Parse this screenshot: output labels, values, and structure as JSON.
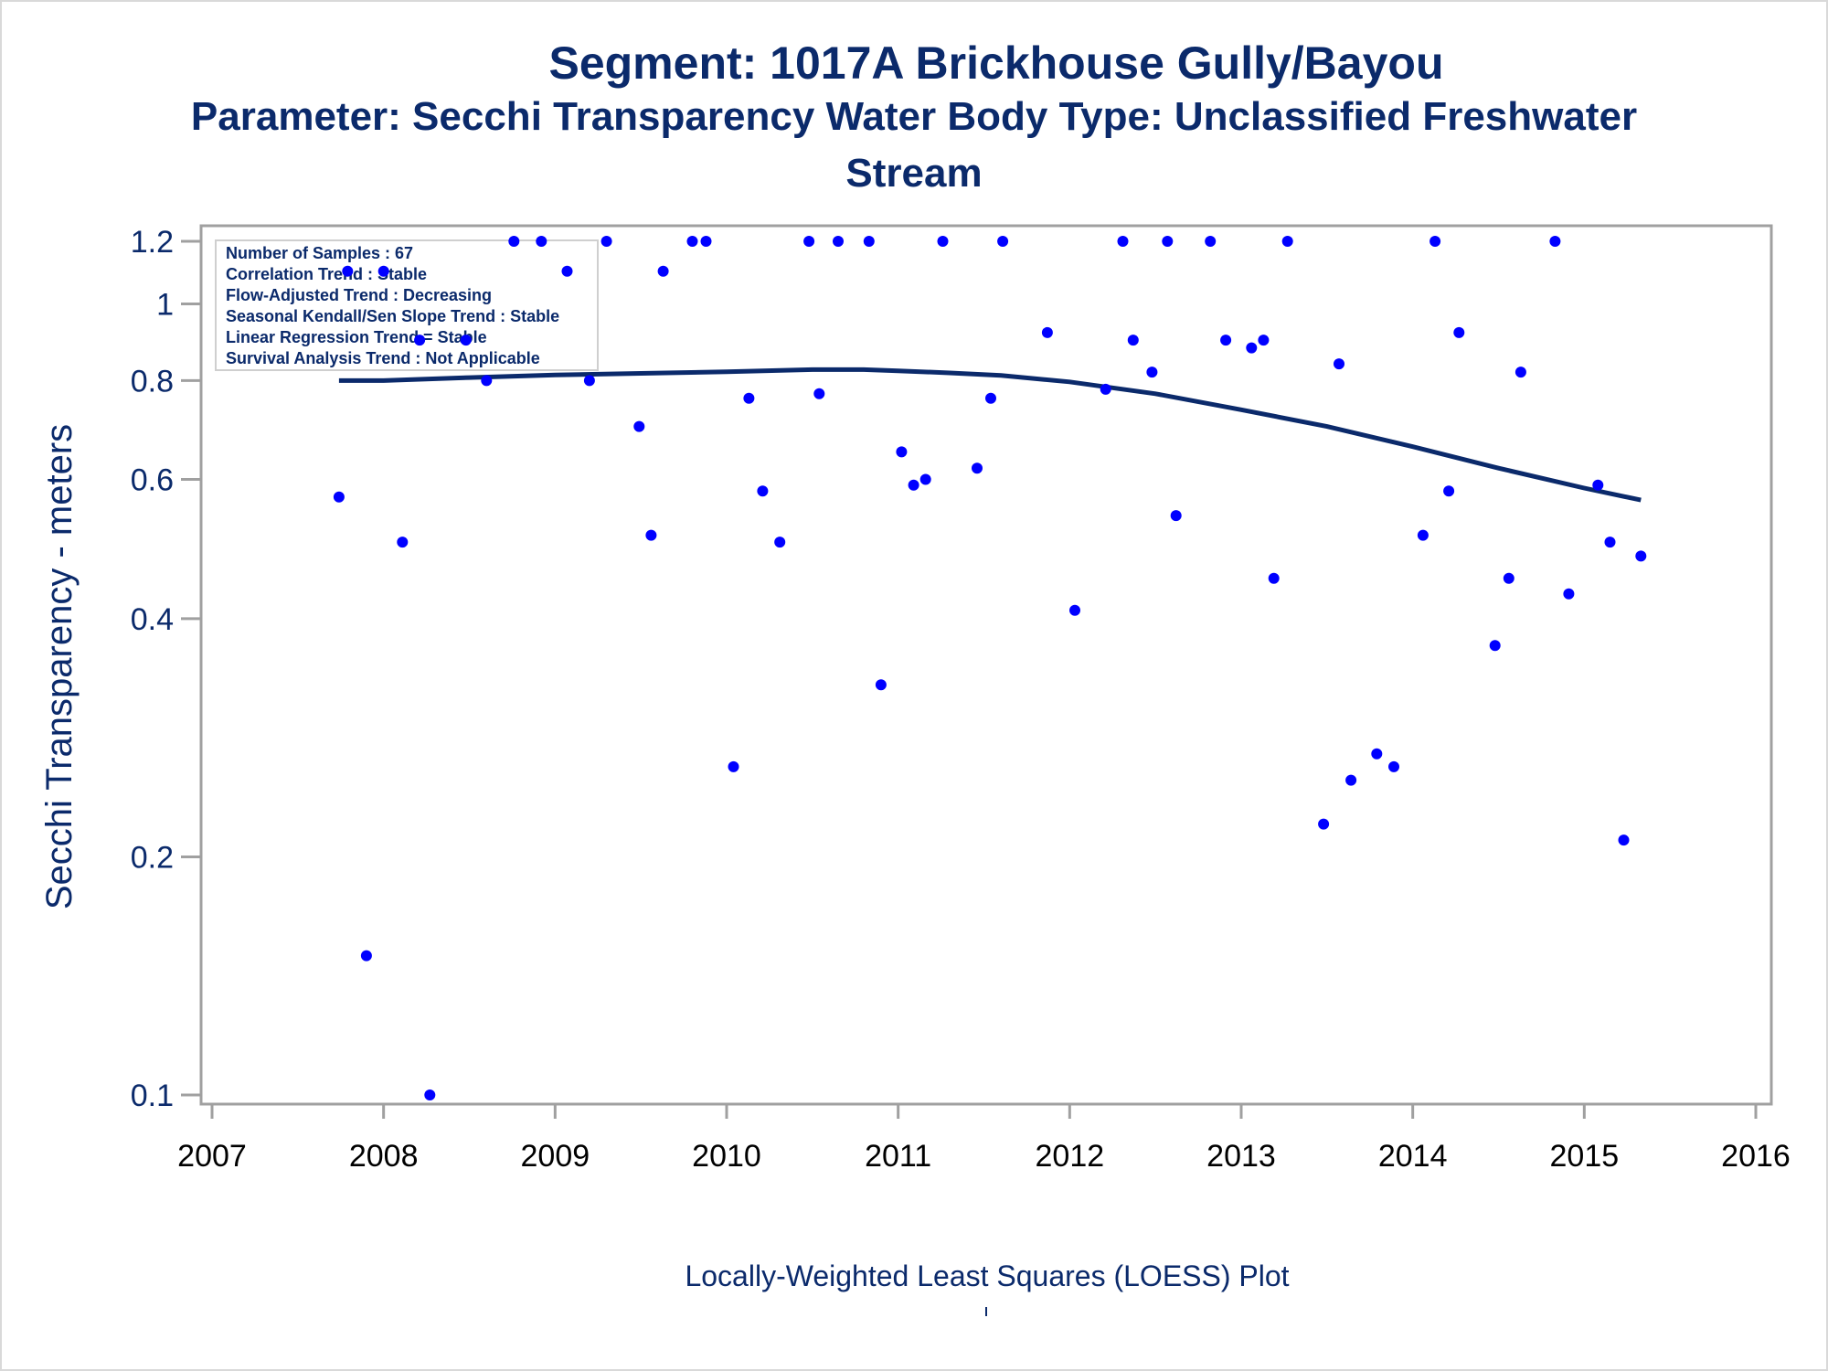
{
  "title": "Segment: 1017A  Brickhouse Gully/Bayou",
  "subtitle_line1": "Parameter: Secchi Transparency   Water Body Type: Unclassified Freshwater",
  "subtitle_line2": "Stream",
  "footer": "Locally-Weighted Least Squares (LOESS) Plot",
  "stats": [
    "Number of Samples : 67",
    "Correlation Trend : Stable",
    "Flow-Adjusted Trend : Decreasing",
    "Seasonal Kendall/Sen Slope Trend : Stable",
    "Linear Regression Trend = Stable",
    "Survival Analysis Trend : Not Applicable"
  ],
  "colors": {
    "text": "#0b2a6b",
    "points": "#0000ff",
    "line": "#0b2a6b",
    "axis": "#a0a0a0"
  },
  "chart_data": {
    "type": "scatter",
    "ylabel": "Secchi Transparency - meters",
    "xlabel": "",
    "y_scale": "log",
    "xlim": [
      2007,
      2016
    ],
    "ylim": [
      0.1,
      1.2
    ],
    "x_ticks": [
      "2007",
      "2008",
      "2009",
      "2010",
      "2011",
      "2012",
      "2013",
      "2014",
      "2015",
      "2016"
    ],
    "y_ticks": [
      "0.1",
      "0.2",
      "0.4",
      "0.6",
      "0.8",
      "1",
      "1.2"
    ],
    "grid": false,
    "legend": "none",
    "series": [
      {
        "values": [
          [
            2007.74,
            0.57
          ],
          [
            2007.79,
            1.1
          ],
          [
            2007.9,
            0.15
          ],
          [
            2008.0,
            1.1
          ],
          [
            2008.11,
            0.5
          ],
          [
            2008.21,
            0.9
          ],
          [
            2008.27,
            0.1
          ],
          [
            2008.48,
            0.9
          ],
          [
            2008.6,
            0.8
          ],
          [
            2008.76,
            1.2
          ],
          [
            2008.92,
            1.2
          ],
          [
            2009.07,
            1.1
          ],
          [
            2009.2,
            0.8
          ],
          [
            2009.3,
            1.2
          ],
          [
            2009.49,
            0.7
          ],
          [
            2009.56,
            0.51
          ],
          [
            2009.63,
            1.1
          ],
          [
            2009.8,
            1.2
          ],
          [
            2009.88,
            1.2
          ],
          [
            2010.04,
            0.26
          ],
          [
            2010.13,
            0.76
          ],
          [
            2010.21,
            0.58
          ],
          [
            2010.31,
            0.5
          ],
          [
            2010.48,
            1.2
          ],
          [
            2010.54,
            0.77
          ],
          [
            2010.65,
            1.2
          ],
          [
            2010.83,
            1.2
          ],
          [
            2010.9,
            0.33
          ],
          [
            2011.02,
            0.65
          ],
          [
            2011.09,
            0.59
          ],
          [
            2011.16,
            0.6
          ],
          [
            2011.26,
            1.2
          ],
          [
            2011.46,
            0.62
          ],
          [
            2011.54,
            0.76
          ],
          [
            2011.61,
            1.2
          ],
          [
            2011.87,
            0.92
          ],
          [
            2012.03,
            0.41
          ],
          [
            2012.21,
            0.78
          ],
          [
            2012.31,
            1.2
          ],
          [
            2012.37,
            0.9
          ],
          [
            2012.48,
            0.82
          ],
          [
            2012.57,
            1.2
          ],
          [
            2012.62,
            0.54
          ],
          [
            2012.82,
            1.2
          ],
          [
            2012.91,
            0.9
          ],
          [
            2013.06,
            0.88
          ],
          [
            2013.13,
            0.9
          ],
          [
            2013.19,
            0.45
          ],
          [
            2013.27,
            1.2
          ],
          [
            2013.48,
            0.22
          ],
          [
            2013.57,
            0.84
          ],
          [
            2013.64,
            0.25
          ],
          [
            2013.79,
            0.27
          ],
          [
            2013.89,
            0.26
          ],
          [
            2014.06,
            0.51
          ],
          [
            2014.13,
            1.2
          ],
          [
            2014.21,
            0.58
          ],
          [
            2014.27,
            0.92
          ],
          [
            2014.48,
            0.37
          ],
          [
            2014.56,
            0.45
          ],
          [
            2014.63,
            0.82
          ],
          [
            2014.83,
            1.2
          ],
          [
            2014.91,
            0.43
          ],
          [
            2015.08,
            0.59
          ],
          [
            2015.15,
            0.5
          ],
          [
            2015.23,
            0.21
          ],
          [
            2015.33,
            0.48
          ]
        ]
      },
      {
        "type": "line",
        "values": [
          [
            2007.74,
            0.8
          ],
          [
            2008.0,
            0.8
          ],
          [
            2008.5,
            0.807
          ],
          [
            2009.0,
            0.813
          ],
          [
            2009.5,
            0.817
          ],
          [
            2010.0,
            0.821
          ],
          [
            2010.5,
            0.826
          ],
          [
            2010.8,
            0.826
          ],
          [
            2011.0,
            0.823
          ],
          [
            2011.3,
            0.818
          ],
          [
            2011.6,
            0.812
          ],
          [
            2012.0,
            0.797
          ],
          [
            2012.5,
            0.77
          ],
          [
            2013.0,
            0.735
          ],
          [
            2013.5,
            0.7
          ],
          [
            2014.0,
            0.66
          ],
          [
            2014.5,
            0.62
          ],
          [
            2015.0,
            0.585
          ],
          [
            2015.33,
            0.565
          ]
        ]
      }
    ]
  }
}
